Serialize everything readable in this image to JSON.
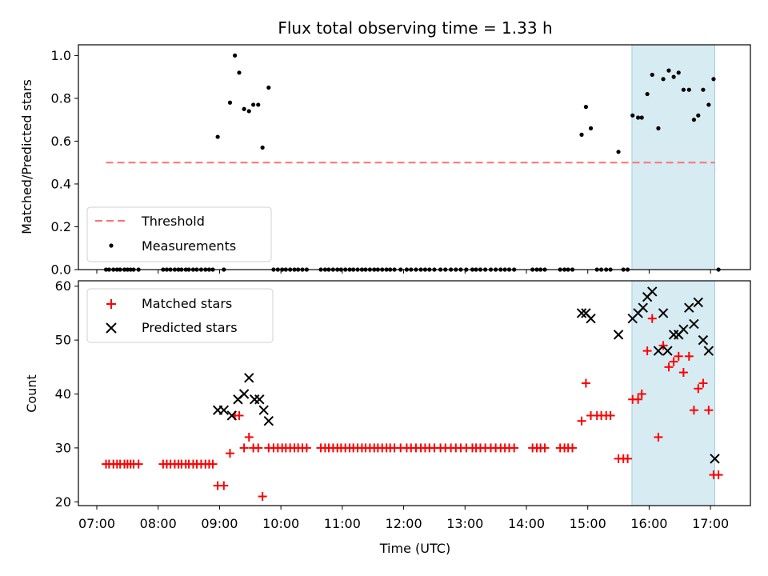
{
  "chart_data": {
    "title": "Flux total observing time = 1.33 h",
    "xlabel": "Time (UTC)",
    "x_unit": "decimal hours UTC",
    "xlim": [
      6.7,
      17.65
    ],
    "x_ticks": [
      {
        "value": 7,
        "label": "07:00"
      },
      {
        "value": 8,
        "label": "08:00"
      },
      {
        "value": 9,
        "label": "09:00"
      },
      {
        "value": 10,
        "label": "10:00"
      },
      {
        "value": 11,
        "label": "11:00"
      },
      {
        "value": 12,
        "label": "12:00"
      },
      {
        "value": 13,
        "label": "13:00"
      },
      {
        "value": 14,
        "label": "14:00"
      },
      {
        "value": 15,
        "label": "15:00"
      },
      {
        "value": 16,
        "label": "16:00"
      },
      {
        "value": 17,
        "label": "17:00"
      }
    ],
    "highlight_span": {
      "x": [
        15.72,
        17.07
      ],
      "color": "#add8e6",
      "alpha": 0.5
    },
    "colors": {
      "threshold": "#ff7070",
      "measurements": "#000000",
      "matched": "#ff0000",
      "predicted": "#000000"
    },
    "top_panel": {
      "type": "scatter",
      "ylabel": "Matched/Predicted stars",
      "ylim": [
        0.0,
        1.05
      ],
      "y_ticks": [
        {
          "value": 0.0,
          "label": "0.0"
        },
        {
          "value": 0.2,
          "label": "0.2"
        },
        {
          "value": 0.4,
          "label": "0.4"
        },
        {
          "value": 0.6,
          "label": "0.6"
        },
        {
          "value": 0.8,
          "label": "0.8"
        },
        {
          "value": 1.0,
          "label": "1.0"
        }
      ],
      "threshold": {
        "label": "Threshold",
        "value": 0.5,
        "x": [
          7.15,
          17.07
        ]
      },
      "measurements": {
        "label": "Measurements",
        "points": [
          [
            7.15,
            0
          ],
          [
            7.2,
            0
          ],
          [
            7.27,
            0
          ],
          [
            7.33,
            0
          ],
          [
            7.38,
            0
          ],
          [
            7.45,
            0
          ],
          [
            7.5,
            0
          ],
          [
            7.55,
            0
          ],
          [
            7.6,
            0
          ],
          [
            7.68,
            0
          ],
          [
            8.08,
            0
          ],
          [
            8.14,
            0
          ],
          [
            8.2,
            0
          ],
          [
            8.27,
            0
          ],
          [
            8.33,
            0
          ],
          [
            8.38,
            0
          ],
          [
            8.45,
            0
          ],
          [
            8.5,
            0
          ],
          [
            8.57,
            0
          ],
          [
            8.63,
            0
          ],
          [
            8.7,
            0
          ],
          [
            8.77,
            0
          ],
          [
            8.83,
            0
          ],
          [
            8.89,
            0
          ],
          [
            8.97,
            0.62
          ],
          [
            9.07,
            0
          ],
          [
            9.17,
            0.78
          ],
          [
            9.25,
            1.0
          ],
          [
            9.32,
            0.92
          ],
          [
            9.4,
            0.75
          ],
          [
            9.48,
            0.74
          ],
          [
            9.55,
            0.77
          ],
          [
            9.63,
            0.77
          ],
          [
            9.7,
            0.57
          ],
          [
            9.8,
            0.85
          ],
          [
            9.88,
            0
          ],
          [
            9.95,
            0
          ],
          [
            10.02,
            0
          ],
          [
            10.08,
            0
          ],
          [
            10.15,
            0
          ],
          [
            10.22,
            0
          ],
          [
            10.28,
            0
          ],
          [
            10.35,
            0
          ],
          [
            10.42,
            0
          ],
          [
            10.65,
            0
          ],
          [
            10.72,
            0
          ],
          [
            10.78,
            0
          ],
          [
            10.85,
            0
          ],
          [
            10.92,
            0
          ],
          [
            10.98,
            0
          ],
          [
            11.05,
            0
          ],
          [
            11.12,
            0
          ],
          [
            11.18,
            0
          ],
          [
            11.25,
            0
          ],
          [
            11.32,
            0
          ],
          [
            11.38,
            0
          ],
          [
            11.45,
            0
          ],
          [
            11.52,
            0
          ],
          [
            11.58,
            0
          ],
          [
            11.65,
            0
          ],
          [
            11.72,
            0
          ],
          [
            11.78,
            0
          ],
          [
            11.85,
            0
          ],
          [
            11.95,
            0
          ],
          [
            12.05,
            0
          ],
          [
            12.12,
            0
          ],
          [
            12.2,
            0
          ],
          [
            12.28,
            0
          ],
          [
            12.35,
            0
          ],
          [
            12.42,
            0
          ],
          [
            12.5,
            0
          ],
          [
            12.6,
            0
          ],
          [
            12.68,
            0
          ],
          [
            12.77,
            0
          ],
          [
            12.85,
            0
          ],
          [
            12.93,
            0
          ],
          [
            13.02,
            0
          ],
          [
            13.12,
            0
          ],
          [
            13.18,
            0
          ],
          [
            13.25,
            0
          ],
          [
            13.33,
            0
          ],
          [
            13.42,
            0
          ],
          [
            13.5,
            0
          ],
          [
            13.58,
            0
          ],
          [
            13.65,
            0
          ],
          [
            13.72,
            0
          ],
          [
            13.8,
            0
          ],
          [
            14.1,
            0
          ],
          [
            14.17,
            0
          ],
          [
            14.23,
            0
          ],
          [
            14.3,
            0
          ],
          [
            14.55,
            0
          ],
          [
            14.62,
            0
          ],
          [
            14.68,
            0
          ],
          [
            14.75,
            0
          ],
          [
            14.9,
            0.63
          ],
          [
            14.97,
            0.76
          ],
          [
            15.05,
            0.66
          ],
          [
            15.15,
            0
          ],
          [
            15.22,
            0
          ],
          [
            15.3,
            0
          ],
          [
            15.37,
            0
          ],
          [
            15.5,
            0.55
          ],
          [
            15.58,
            0
          ],
          [
            15.65,
            0
          ],
          [
            15.73,
            0.72
          ],
          [
            15.82,
            0.71
          ],
          [
            15.88,
            0.71
          ],
          [
            15.97,
            0.82
          ],
          [
            16.05,
            0.91
          ],
          [
            16.15,
            0.66
          ],
          [
            16.23,
            0.89
          ],
          [
            16.32,
            0.93
          ],
          [
            16.4,
            0.9
          ],
          [
            16.48,
            0.92
          ],
          [
            16.56,
            0.84
          ],
          [
            16.65,
            0.84
          ],
          [
            16.73,
            0.7
          ],
          [
            16.8,
            0.72
          ],
          [
            16.88,
            0.84
          ],
          [
            16.97,
            0.77
          ],
          [
            17.05,
            0.89
          ],
          [
            17.13,
            0
          ]
        ]
      },
      "legend": {
        "location": "lower left",
        "entries": [
          "Threshold",
          "Measurements"
        ]
      }
    },
    "bottom_panel": {
      "type": "scatter",
      "ylabel": "Count",
      "ylim": [
        19.3,
        61.0
      ],
      "y_ticks": [
        {
          "value": 20,
          "label": "20"
        },
        {
          "value": 30,
          "label": "30"
        },
        {
          "value": 40,
          "label": "40"
        },
        {
          "value": 50,
          "label": "50"
        },
        {
          "value": 60,
          "label": "60"
        }
      ],
      "matched": {
        "label": "Matched stars",
        "marker": "+",
        "points": [
          [
            7.15,
            27
          ],
          [
            7.2,
            27
          ],
          [
            7.27,
            27
          ],
          [
            7.33,
            27
          ],
          [
            7.38,
            27
          ],
          [
            7.45,
            27
          ],
          [
            7.5,
            27
          ],
          [
            7.55,
            27
          ],
          [
            7.6,
            27
          ],
          [
            7.68,
            27
          ],
          [
            8.08,
            27
          ],
          [
            8.14,
            27
          ],
          [
            8.2,
            27
          ],
          [
            8.27,
            27
          ],
          [
            8.33,
            27
          ],
          [
            8.38,
            27
          ],
          [
            8.45,
            27
          ],
          [
            8.5,
            27
          ],
          [
            8.57,
            27
          ],
          [
            8.63,
            27
          ],
          [
            8.7,
            27
          ],
          [
            8.77,
            27
          ],
          [
            8.83,
            27
          ],
          [
            8.89,
            27
          ],
          [
            8.97,
            23
          ],
          [
            9.07,
            23
          ],
          [
            9.17,
            29
          ],
          [
            9.25,
            36
          ],
          [
            9.32,
            36
          ],
          [
            9.4,
            30
          ],
          [
            9.48,
            32
          ],
          [
            9.55,
            30
          ],
          [
            9.63,
            30
          ],
          [
            9.7,
            21
          ],
          [
            9.8,
            30
          ],
          [
            9.88,
            30
          ],
          [
            9.95,
            30
          ],
          [
            10.02,
            30
          ],
          [
            10.08,
            30
          ],
          [
            10.15,
            30
          ],
          [
            10.22,
            30
          ],
          [
            10.28,
            30
          ],
          [
            10.35,
            30
          ],
          [
            10.42,
            30
          ],
          [
            10.65,
            30
          ],
          [
            10.72,
            30
          ],
          [
            10.78,
            30
          ],
          [
            10.85,
            30
          ],
          [
            10.92,
            30
          ],
          [
            10.98,
            30
          ],
          [
            11.05,
            30
          ],
          [
            11.12,
            30
          ],
          [
            11.18,
            30
          ],
          [
            11.25,
            30
          ],
          [
            11.32,
            30
          ],
          [
            11.38,
            30
          ],
          [
            11.45,
            30
          ],
          [
            11.52,
            30
          ],
          [
            11.58,
            30
          ],
          [
            11.65,
            30
          ],
          [
            11.72,
            30
          ],
          [
            11.78,
            30
          ],
          [
            11.85,
            30
          ],
          [
            11.95,
            30
          ],
          [
            12.05,
            30
          ],
          [
            12.12,
            30
          ],
          [
            12.2,
            30
          ],
          [
            12.28,
            30
          ],
          [
            12.35,
            30
          ],
          [
            12.42,
            30
          ],
          [
            12.5,
            30
          ],
          [
            12.6,
            30
          ],
          [
            12.68,
            30
          ],
          [
            12.77,
            30
          ],
          [
            12.85,
            30
          ],
          [
            12.93,
            30
          ],
          [
            13.02,
            30
          ],
          [
            13.12,
            30
          ],
          [
            13.18,
            30
          ],
          [
            13.25,
            30
          ],
          [
            13.33,
            30
          ],
          [
            13.42,
            30
          ],
          [
            13.5,
            30
          ],
          [
            13.58,
            30
          ],
          [
            13.65,
            30
          ],
          [
            13.72,
            30
          ],
          [
            13.8,
            30
          ],
          [
            14.1,
            30
          ],
          [
            14.17,
            30
          ],
          [
            14.23,
            30
          ],
          [
            14.3,
            30
          ],
          [
            14.55,
            30
          ],
          [
            14.62,
            30
          ],
          [
            14.68,
            30
          ],
          [
            14.75,
            30
          ],
          [
            14.9,
            35
          ],
          [
            14.97,
            42
          ],
          [
            15.05,
            36
          ],
          [
            15.15,
            36
          ],
          [
            15.22,
            36
          ],
          [
            15.3,
            36
          ],
          [
            15.37,
            36
          ],
          [
            15.5,
            28
          ],
          [
            15.58,
            28
          ],
          [
            15.65,
            28
          ],
          [
            15.73,
            39
          ],
          [
            15.82,
            39
          ],
          [
            15.88,
            40
          ],
          [
            15.97,
            48
          ],
          [
            16.05,
            54
          ],
          [
            16.15,
            32
          ],
          [
            16.23,
            49
          ],
          [
            16.32,
            45
          ],
          [
            16.4,
            46
          ],
          [
            16.48,
            47
          ],
          [
            16.56,
            44
          ],
          [
            16.65,
            47
          ],
          [
            16.73,
            37
          ],
          [
            16.8,
            41
          ],
          [
            16.88,
            42
          ],
          [
            16.97,
            37
          ],
          [
            17.05,
            25
          ],
          [
            17.13,
            25
          ]
        ]
      },
      "predicted": {
        "label": "Predicted stars",
        "marker": "x",
        "points": [
          [
            8.97,
            37
          ],
          [
            9.07,
            37
          ],
          [
            9.2,
            36
          ],
          [
            9.3,
            39
          ],
          [
            9.4,
            40
          ],
          [
            9.48,
            43
          ],
          [
            9.57,
            39
          ],
          [
            9.65,
            39
          ],
          [
            9.72,
            37
          ],
          [
            9.8,
            35
          ],
          [
            14.9,
            55
          ],
          [
            14.97,
            55
          ],
          [
            15.05,
            54
          ],
          [
            15.5,
            51
          ],
          [
            15.73,
            54
          ],
          [
            15.82,
            55
          ],
          [
            15.9,
            56
          ],
          [
            15.97,
            58
          ],
          [
            16.05,
            59
          ],
          [
            16.15,
            48
          ],
          [
            16.23,
            55
          ],
          [
            16.3,
            48
          ],
          [
            16.4,
            51
          ],
          [
            16.48,
            51
          ],
          [
            16.56,
            52
          ],
          [
            16.65,
            56
          ],
          [
            16.73,
            53
          ],
          [
            16.8,
            57
          ],
          [
            16.88,
            50
          ],
          [
            16.97,
            48
          ],
          [
            17.07,
            28
          ]
        ]
      },
      "legend": {
        "location": "upper left",
        "entries": [
          "Matched stars",
          "Predicted stars"
        ]
      }
    }
  }
}
